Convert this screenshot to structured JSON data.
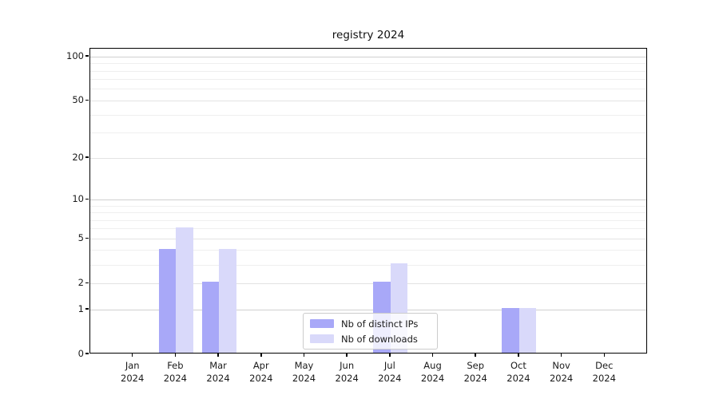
{
  "chart_data": {
    "type": "bar",
    "title": "registry 2024",
    "categories": [
      "Jan",
      "Feb",
      "Mar",
      "Apr",
      "May",
      "Jun",
      "Jul",
      "Aug",
      "Sep",
      "Oct",
      "Nov",
      "Dec"
    ],
    "category_year": "2024",
    "series": [
      {
        "name": "Nb of distinct IPs",
        "color": "#a8a8f8",
        "values": [
          0,
          4,
          2,
          0,
          0,
          0,
          2,
          0,
          0,
          1,
          0,
          0
        ]
      },
      {
        "name": "Nb of downloads",
        "color": "#d9d9fa",
        "values": [
          0,
          6,
          4,
          0,
          0,
          0,
          3,
          0,
          0,
          1,
          0,
          0
        ]
      }
    ],
    "xlabel": "",
    "ylabel": "",
    "yscale": "log1p",
    "yticks": [
      0,
      1,
      2,
      5,
      10,
      20,
      50,
      100
    ],
    "ylim": [
      0,
      114
    ],
    "grid": "on",
    "legend_position": "lower-center-inside",
    "bar_width_fraction": 0.4
  },
  "colors": {
    "axis": "#000000",
    "grid_minor": "#efefef",
    "grid_labeled": "#e3e3e3",
    "grid_power": "#d0d0d0",
    "legend_border": "#cccccc",
    "text": "#1a1a1a"
  }
}
